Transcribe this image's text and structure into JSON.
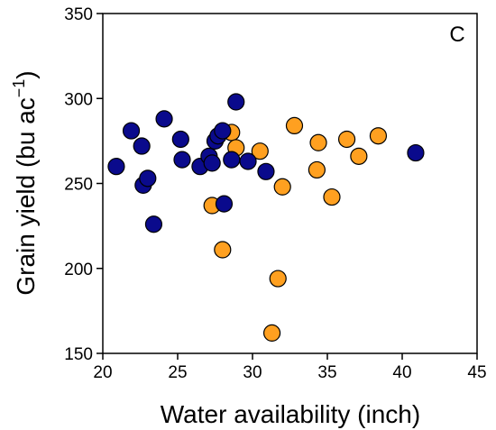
{
  "chart_data": {
    "type": "scatter",
    "panel_label": "C",
    "xlabel": "Water availability (inch)",
    "ylabel_main": "Grain yield (bu ac",
    "ylabel_sup": "−1",
    "ylabel_close": ")",
    "xlim": [
      20,
      45
    ],
    "ylim": [
      150,
      350
    ],
    "xticks": [
      20,
      25,
      30,
      35,
      40,
      45
    ],
    "yticks": [
      150,
      200,
      250,
      300,
      350
    ],
    "grid": false,
    "series": [
      {
        "color": "#FFA020",
        "points": [
          [
            27.3,
            237
          ],
          [
            28.6,
            280
          ],
          [
            28.9,
            271
          ],
          [
            30.5,
            269
          ],
          [
            32.8,
            284
          ],
          [
            32.0,
            248
          ],
          [
            34.3,
            258
          ],
          [
            34.4,
            274
          ],
          [
            35.3,
            242
          ],
          [
            36.3,
            276
          ],
          [
            37.1,
            266
          ],
          [
            38.4,
            278
          ],
          [
            28.0,
            211
          ],
          [
            31.7,
            194
          ],
          [
            31.3,
            162
          ]
        ]
      },
      {
        "color": "#0A0A8C",
        "points": [
          [
            20.9,
            260
          ],
          [
            21.9,
            281
          ],
          [
            22.6,
            272
          ],
          [
            22.7,
            249
          ],
          [
            23.0,
            253
          ],
          [
            23.4,
            226
          ],
          [
            24.1,
            288
          ],
          [
            25.2,
            276
          ],
          [
            25.3,
            264
          ],
          [
            26.5,
            260
          ],
          [
            27.1,
            266
          ],
          [
            27.3,
            262
          ],
          [
            27.5,
            275
          ],
          [
            27.7,
            278
          ],
          [
            28.0,
            281
          ],
          [
            28.1,
            238
          ],
          [
            28.6,
            264
          ],
          [
            28.9,
            298
          ],
          [
            29.7,
            263
          ],
          [
            30.9,
            257
          ],
          [
            40.9,
            268
          ]
        ]
      }
    ]
  }
}
